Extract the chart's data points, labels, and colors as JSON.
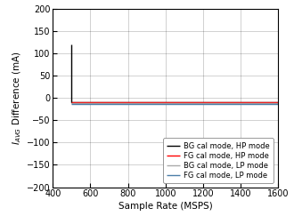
{
  "title": "",
  "xlabel": "Sample Rate (MSPS)",
  "ylabel": "I_AVG Difference (mA)",
  "xlim": [
    400,
    1600
  ],
  "ylim": [
    -200,
    200
  ],
  "xticks": [
    400,
    600,
    800,
    1000,
    1200,
    1400,
    1600
  ],
  "yticks": [
    -200,
    -150,
    -100,
    -50,
    0,
    50,
    100,
    150,
    200
  ],
  "lines": [
    {
      "label": "BG cal mode, HP mode",
      "color": "#000000",
      "linewidth": 1.0,
      "x": [
        500,
        500,
        1600
      ],
      "y": [
        120,
        -10,
        -10
      ]
    },
    {
      "label": "FG cal mode, HP mode",
      "color": "#ff0000",
      "linewidth": 1.0,
      "x": [
        500,
        1600
      ],
      "y": [
        -10,
        -10
      ]
    },
    {
      "label": "BG cal mode, LP mode",
      "color": "#aaaaaa",
      "linewidth": 1.0,
      "x": [
        500,
        1600
      ],
      "y": [
        -12,
        -12
      ]
    },
    {
      "label": "FG cal mode, LP mode",
      "color": "#4c7ea8",
      "linewidth": 1.0,
      "x": [
        500,
        1600
      ],
      "y": [
        -14,
        -14
      ]
    }
  ],
  "bg_color": "#ffffff",
  "grid_color": "#000000",
  "grid_alpha": 0.25,
  "grid_linewidth": 0.5,
  "tick_fontsize": 7,
  "label_fontsize": 7.5,
  "legend_fontsize": 6.0
}
